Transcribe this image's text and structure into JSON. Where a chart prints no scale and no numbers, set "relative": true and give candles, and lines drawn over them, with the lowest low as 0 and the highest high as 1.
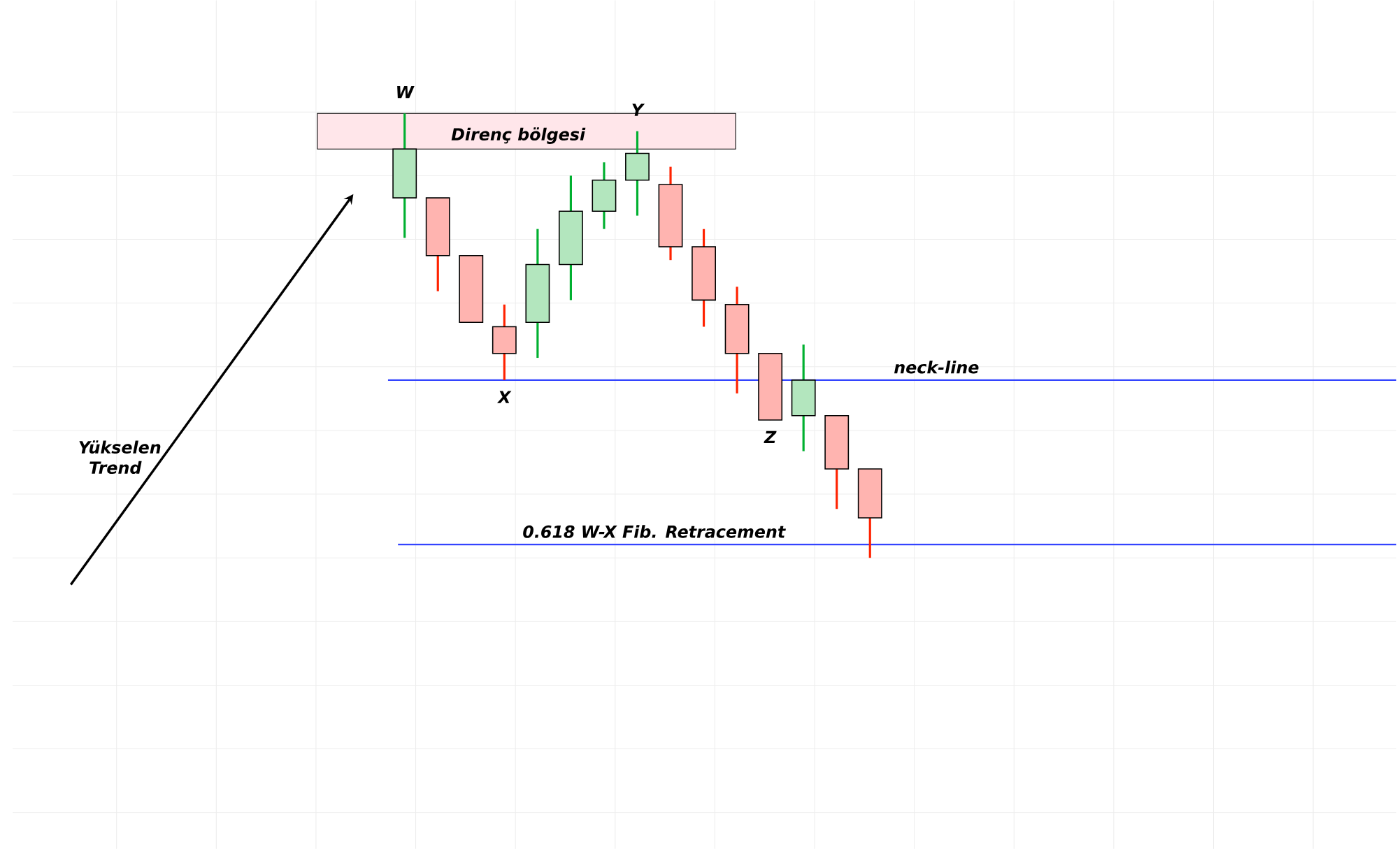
{
  "chart_data": {
    "type": "candlestick",
    "relative": true,
    "grid": true,
    "categories": [
      null,
      null,
      null,
      null,
      null,
      null,
      null,
      null,
      null,
      null,
      null,
      null,
      null,
      null,
      null
    ],
    "ohlc": [
      [
        0.81,
        1.0,
        0.72,
        0.92
      ],
      [
        0.81,
        0.81,
        0.6,
        0.68
      ],
      [
        0.68,
        0.68,
        0.53,
        0.53
      ],
      [
        0.52,
        0.57,
        0.4,
        0.46
      ],
      [
        0.53,
        0.74,
        0.45,
        0.66
      ],
      [
        0.66,
        0.86,
        0.58,
        0.78
      ],
      [
        0.78,
        0.89,
        0.74,
        0.85
      ],
      [
        0.85,
        0.96,
        0.77,
        0.91
      ],
      [
        0.84,
        0.88,
        0.67,
        0.7
      ],
      [
        0.7,
        0.74,
        0.52,
        0.58
      ],
      [
        0.57,
        0.61,
        0.37,
        0.46
      ],
      [
        0.46,
        0.46,
        0.31,
        0.31
      ],
      [
        0.32,
        0.48,
        0.24,
        0.4
      ],
      [
        0.32,
        0.32,
        0.11,
        0.2
      ],
      [
        0.2,
        0.2,
        0.0,
        0.09
      ]
    ],
    "ref_lines": [
      {
        "axis": "y",
        "value": 0.4,
        "label": "neck-line",
        "color": "#3344ff"
      },
      {
        "axis": "y",
        "value": 0.03,
        "label": "0.618 W-X Fib. Retracement",
        "color": "#3344ff"
      }
    ],
    "bands": [
      {
        "axis": "y",
        "from": 0.92,
        "to": 1.0,
        "label": "Direnç bölgesi",
        "color": "#ffe6ea"
      }
    ],
    "annotations": [
      {
        "text": "W",
        "y": 1.0
      },
      {
        "text": "X",
        "y": 0.4
      },
      {
        "text": "Y",
        "y": 0.96
      },
      {
        "text": "Z",
        "y": 0.31
      },
      "Yükselen Trend"
    ]
  }
}
